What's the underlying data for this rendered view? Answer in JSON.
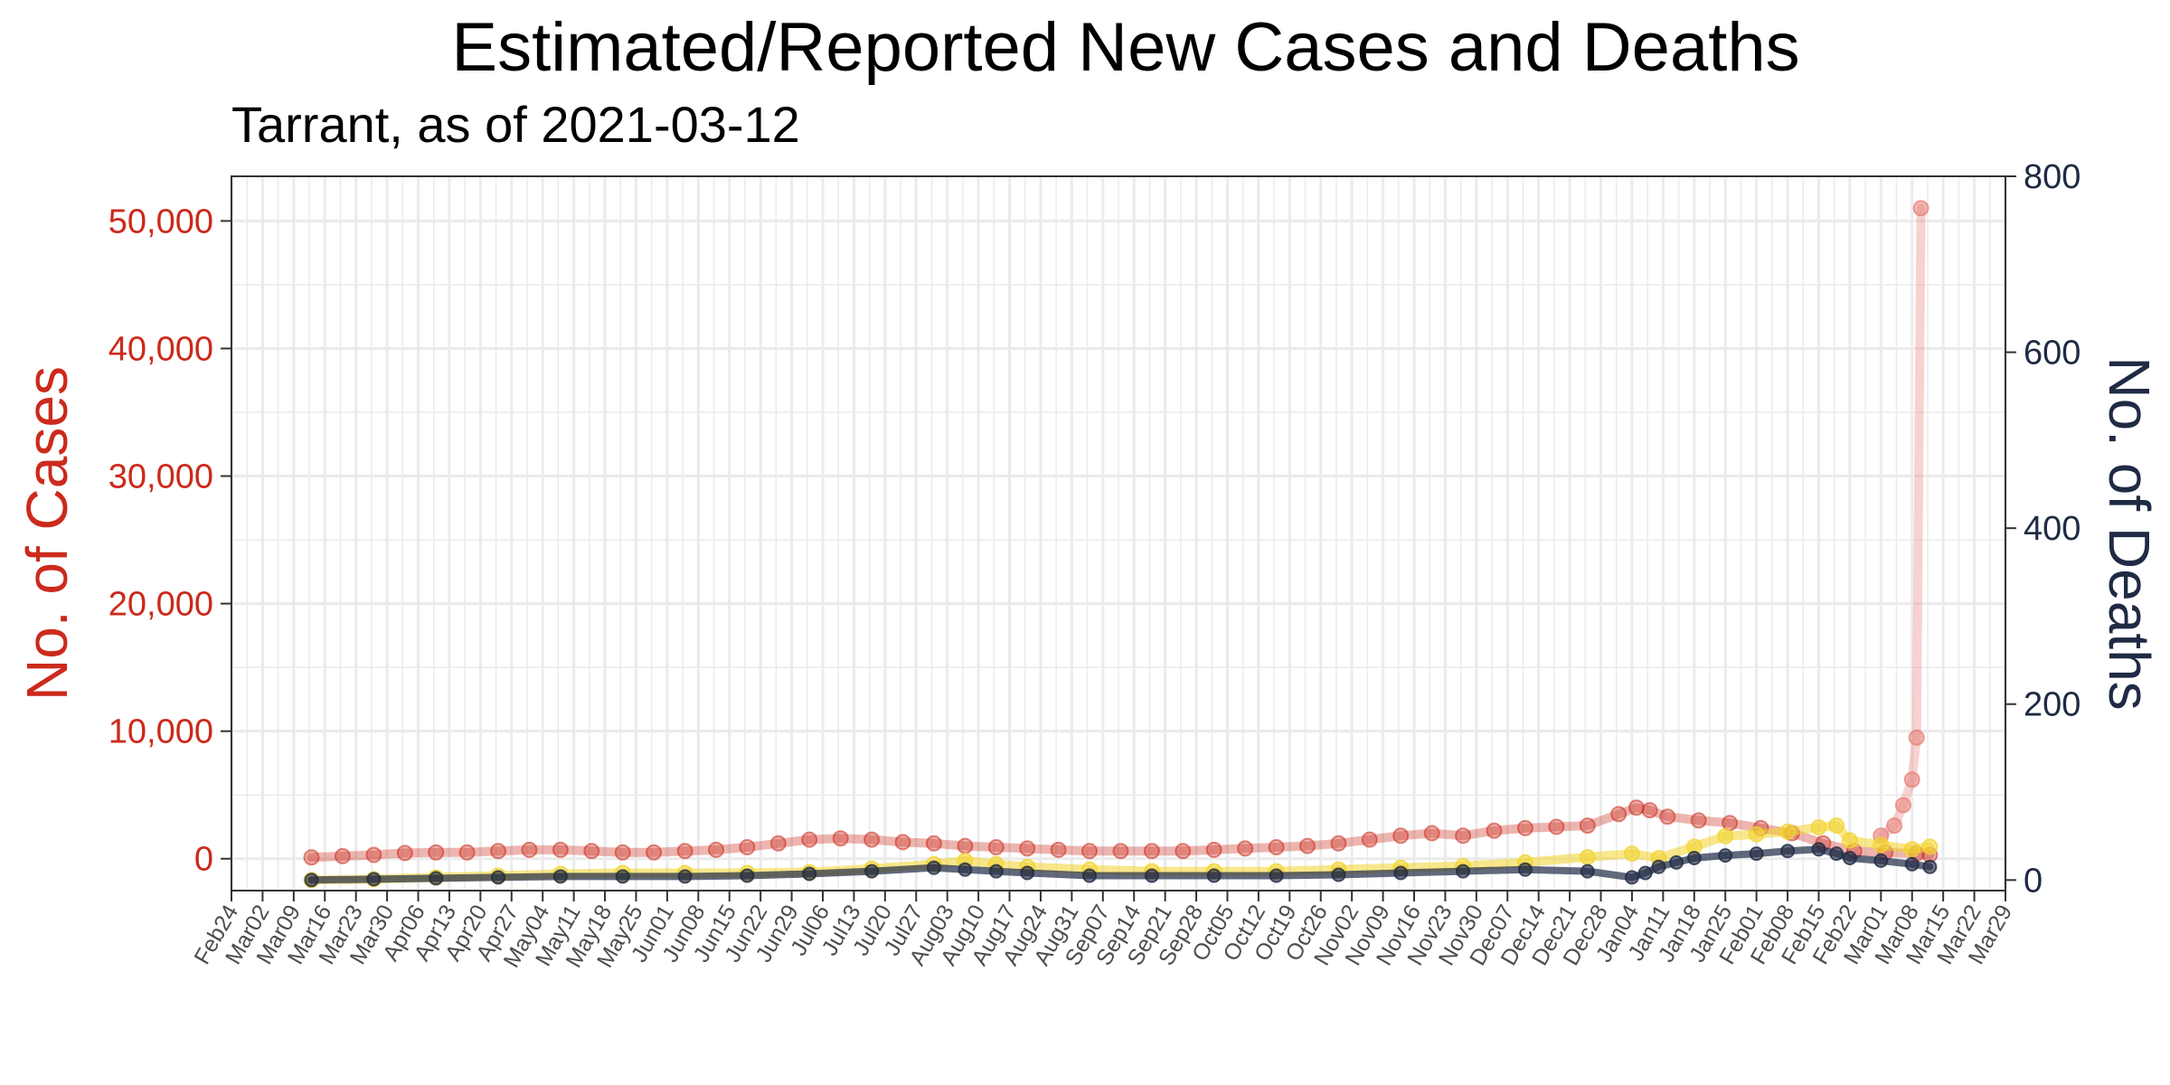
{
  "colors": {
    "cases": "#cc2a1c",
    "cases_light": "#e87f78",
    "deaths": "#1f2a44",
    "deaths_estimated": "#f2d42c",
    "grid": "#ebebeb",
    "axis": "#333333"
  },
  "chart_data": {
    "type": "line",
    "title": "Estimated/Reported New Cases and Deaths",
    "subtitle": "Tarrant, as of 2021-03-12",
    "y_left_label": "No. of Cases",
    "y_right_label": "No. of Deaths",
    "x_range": [
      "2020-02-24",
      "2021-03-29"
    ],
    "y_left_range": [
      -2500,
      53500
    ],
    "y_right_range": [
      -12,
      800
    ],
    "y_left_ticks": [
      0,
      10000,
      20000,
      30000,
      40000,
      50000
    ],
    "y_left_tick_labels": [
      "0",
      "10,000",
      "20,000",
      "30,000",
      "40,000",
      "50,000"
    ],
    "y_right_ticks": [
      0,
      200,
      400,
      600,
      800
    ],
    "y_right_tick_labels": [
      "0",
      "200",
      "400",
      "600",
      "800"
    ],
    "x_tick_labels": [
      "Feb24",
      "Mar02",
      "Mar09",
      "Mar16",
      "Mar23",
      "Mar30",
      "Apr06",
      "Apr13",
      "Apr20",
      "Apr27",
      "May04",
      "May11",
      "May18",
      "May25",
      "Jun01",
      "Jun08",
      "Jun15",
      "Jun22",
      "Jun29",
      "Jul06",
      "Jul13",
      "Jul20",
      "Jul27",
      "Aug03",
      "Aug10",
      "Aug17",
      "Aug24",
      "Aug31",
      "Sep07",
      "Sep14",
      "Sep21",
      "Sep28",
      "Oct05",
      "Oct12",
      "Oct19",
      "Oct26",
      "Nov02",
      "Nov09",
      "Nov16",
      "Nov23",
      "Nov30",
      "Dec07",
      "Dec14",
      "Dec21",
      "Dec28",
      "Jan04",
      "Jan11",
      "Jan18",
      "Jan25",
      "Feb01",
      "Feb08",
      "Feb15",
      "Feb22",
      "Mar01",
      "Mar08",
      "Mar15",
      "Mar22",
      "Mar29"
    ],
    "x_tick_dates": [
      "2020-02-24",
      "2020-03-02",
      "2020-03-09",
      "2020-03-16",
      "2020-03-23",
      "2020-03-30",
      "2020-04-06",
      "2020-04-13",
      "2020-04-20",
      "2020-04-27",
      "2020-05-04",
      "2020-05-11",
      "2020-05-18",
      "2020-05-25",
      "2020-06-01",
      "2020-06-08",
      "2020-06-15",
      "2020-06-22",
      "2020-06-29",
      "2020-07-06",
      "2020-07-13",
      "2020-07-20",
      "2020-07-27",
      "2020-08-03",
      "2020-08-10",
      "2020-08-17",
      "2020-08-24",
      "2020-08-31",
      "2020-09-07",
      "2020-09-14",
      "2020-09-21",
      "2020-09-28",
      "2020-10-05",
      "2020-10-12",
      "2020-10-19",
      "2020-10-26",
      "2020-11-02",
      "2020-11-09",
      "2020-11-16",
      "2020-11-23",
      "2020-11-30",
      "2020-12-07",
      "2020-12-14",
      "2020-12-21",
      "2020-12-28",
      "2021-01-04",
      "2021-01-11",
      "2021-01-18",
      "2021-01-25",
      "2021-02-01",
      "2021-02-08",
      "2021-02-15",
      "2021-02-22",
      "2021-03-01",
      "2021-03-08",
      "2021-03-15",
      "2021-03-22",
      "2021-03-29"
    ],
    "series": [
      {
        "axis": "left",
        "points": [
          [
            "2020-03-13",
            100
          ],
          [
            "2020-03-20",
            200
          ],
          [
            "2020-03-27",
            300
          ],
          [
            "2020-04-03",
            450
          ],
          [
            "2020-04-10",
            500
          ],
          [
            "2020-04-17",
            500
          ],
          [
            "2020-04-24",
            600
          ],
          [
            "2020-05-01",
            700
          ],
          [
            "2020-05-08",
            700
          ],
          [
            "2020-05-15",
            600
          ],
          [
            "2020-05-22",
            500
          ],
          [
            "2020-05-29",
            500
          ],
          [
            "2020-06-05",
            600
          ],
          [
            "2020-06-12",
            700
          ],
          [
            "2020-06-19",
            900
          ],
          [
            "2020-06-26",
            1200
          ],
          [
            "2020-07-03",
            1500
          ],
          [
            "2020-07-10",
            1600
          ],
          [
            "2020-07-17",
            1500
          ],
          [
            "2020-07-24",
            1300
          ],
          [
            "2020-07-31",
            1200
          ],
          [
            "2020-08-07",
            1000
          ],
          [
            "2020-08-14",
            900
          ],
          [
            "2020-08-21",
            800
          ],
          [
            "2020-08-28",
            700
          ],
          [
            "2020-09-04",
            600
          ],
          [
            "2020-09-11",
            600
          ],
          [
            "2020-09-18",
            600
          ],
          [
            "2020-09-25",
            600
          ],
          [
            "2020-10-02",
            700
          ],
          [
            "2020-10-09",
            800
          ],
          [
            "2020-10-16",
            900
          ],
          [
            "2020-10-23",
            1000
          ],
          [
            "2020-10-30",
            1200
          ],
          [
            "2020-11-06",
            1500
          ],
          [
            "2020-11-13",
            1800
          ],
          [
            "2020-11-20",
            2000
          ],
          [
            "2020-11-27",
            1800
          ],
          [
            "2020-12-04",
            2200
          ],
          [
            "2020-12-11",
            2400
          ],
          [
            "2020-12-18",
            2500
          ],
          [
            "2020-12-25",
            2600
          ],
          [
            "2021-01-01",
            3500
          ],
          [
            "2021-01-05",
            4000
          ],
          [
            "2021-01-08",
            3800
          ],
          [
            "2021-01-12",
            3300
          ],
          [
            "2021-01-19",
            3000
          ],
          [
            "2021-01-26",
            2800
          ],
          [
            "2021-02-02",
            2400
          ],
          [
            "2021-02-09",
            2000
          ],
          [
            "2021-02-16",
            1200
          ],
          [
            "2021-02-23",
            600
          ],
          [
            "2021-03-02",
            500
          ],
          [
            "2021-03-09",
            400
          ],
          [
            "2021-03-12",
            300
          ]
        ]
      },
      {
        "axis": "left",
        "points": [
          [
            "2021-03-01",
            1800
          ],
          [
            "2021-03-04",
            2600
          ],
          [
            "2021-03-06",
            4200
          ],
          [
            "2021-03-08",
            6200
          ],
          [
            "2021-03-09",
            9500
          ],
          [
            "2021-03-10",
            51000
          ]
        ]
      },
      {
        "axis": "right",
        "points": [
          [
            "2020-03-13",
            0
          ],
          [
            "2020-03-27",
            1
          ],
          [
            "2020-04-10",
            3
          ],
          [
            "2020-04-24",
            5
          ],
          [
            "2020-05-08",
            7
          ],
          [
            "2020-05-22",
            8
          ],
          [
            "2020-06-05",
            8
          ],
          [
            "2020-06-19",
            8
          ],
          [
            "2020-07-03",
            9
          ],
          [
            "2020-07-17",
            13
          ],
          [
            "2020-07-31",
            18
          ],
          [
            "2020-08-07",
            22
          ],
          [
            "2020-08-14",
            18
          ],
          [
            "2020-08-21",
            15
          ],
          [
            "2020-09-04",
            12
          ],
          [
            "2020-09-18",
            10
          ],
          [
            "2020-10-02",
            10
          ],
          [
            "2020-10-16",
            10
          ],
          [
            "2020-10-30",
            12
          ],
          [
            "2020-11-13",
            14
          ],
          [
            "2020-11-27",
            16
          ],
          [
            "2020-12-11",
            20
          ],
          [
            "2020-12-25",
            26
          ],
          [
            "2021-01-04",
            30
          ],
          [
            "2021-01-10",
            25
          ],
          [
            "2021-01-18",
            38
          ],
          [
            "2021-01-25",
            50
          ],
          [
            "2021-02-01",
            52
          ],
          [
            "2021-02-08",
            55
          ],
          [
            "2021-02-15",
            60
          ],
          [
            "2021-02-19",
            62
          ],
          [
            "2021-02-22",
            45
          ],
          [
            "2021-03-01",
            40
          ],
          [
            "2021-03-08",
            35
          ],
          [
            "2021-03-12",
            38
          ]
        ]
      },
      {
        "axis": "right",
        "points": [
          [
            "2020-03-13",
            0
          ],
          [
            "2020-03-27",
            1
          ],
          [
            "2020-04-10",
            2
          ],
          [
            "2020-04-24",
            3
          ],
          [
            "2020-05-08",
            4
          ],
          [
            "2020-05-22",
            4
          ],
          [
            "2020-06-05",
            4
          ],
          [
            "2020-06-19",
            5
          ],
          [
            "2020-07-03",
            7
          ],
          [
            "2020-07-17",
            10
          ],
          [
            "2020-07-31",
            14
          ],
          [
            "2020-08-07",
            12
          ],
          [
            "2020-08-14",
            10
          ],
          [
            "2020-08-21",
            8
          ],
          [
            "2020-09-04",
            5
          ],
          [
            "2020-09-18",
            5
          ],
          [
            "2020-10-02",
            5
          ],
          [
            "2020-10-16",
            5
          ],
          [
            "2020-10-30",
            6
          ],
          [
            "2020-11-13",
            8
          ],
          [
            "2020-11-27",
            10
          ],
          [
            "2020-12-11",
            12
          ],
          [
            "2020-12-25",
            10
          ],
          [
            "2021-01-04",
            3
          ],
          [
            "2021-01-07",
            8
          ],
          [
            "2021-01-10",
            15
          ],
          [
            "2021-01-14",
            20
          ],
          [
            "2021-01-18",
            25
          ],
          [
            "2021-01-25",
            28
          ],
          [
            "2021-02-01",
            30
          ],
          [
            "2021-02-08",
            33
          ],
          [
            "2021-02-15",
            35
          ],
          [
            "2021-02-19",
            30
          ],
          [
            "2021-02-22",
            25
          ],
          [
            "2021-03-01",
            22
          ],
          [
            "2021-03-08",
            18
          ],
          [
            "2021-03-12",
            15
          ]
        ]
      }
    ]
  }
}
